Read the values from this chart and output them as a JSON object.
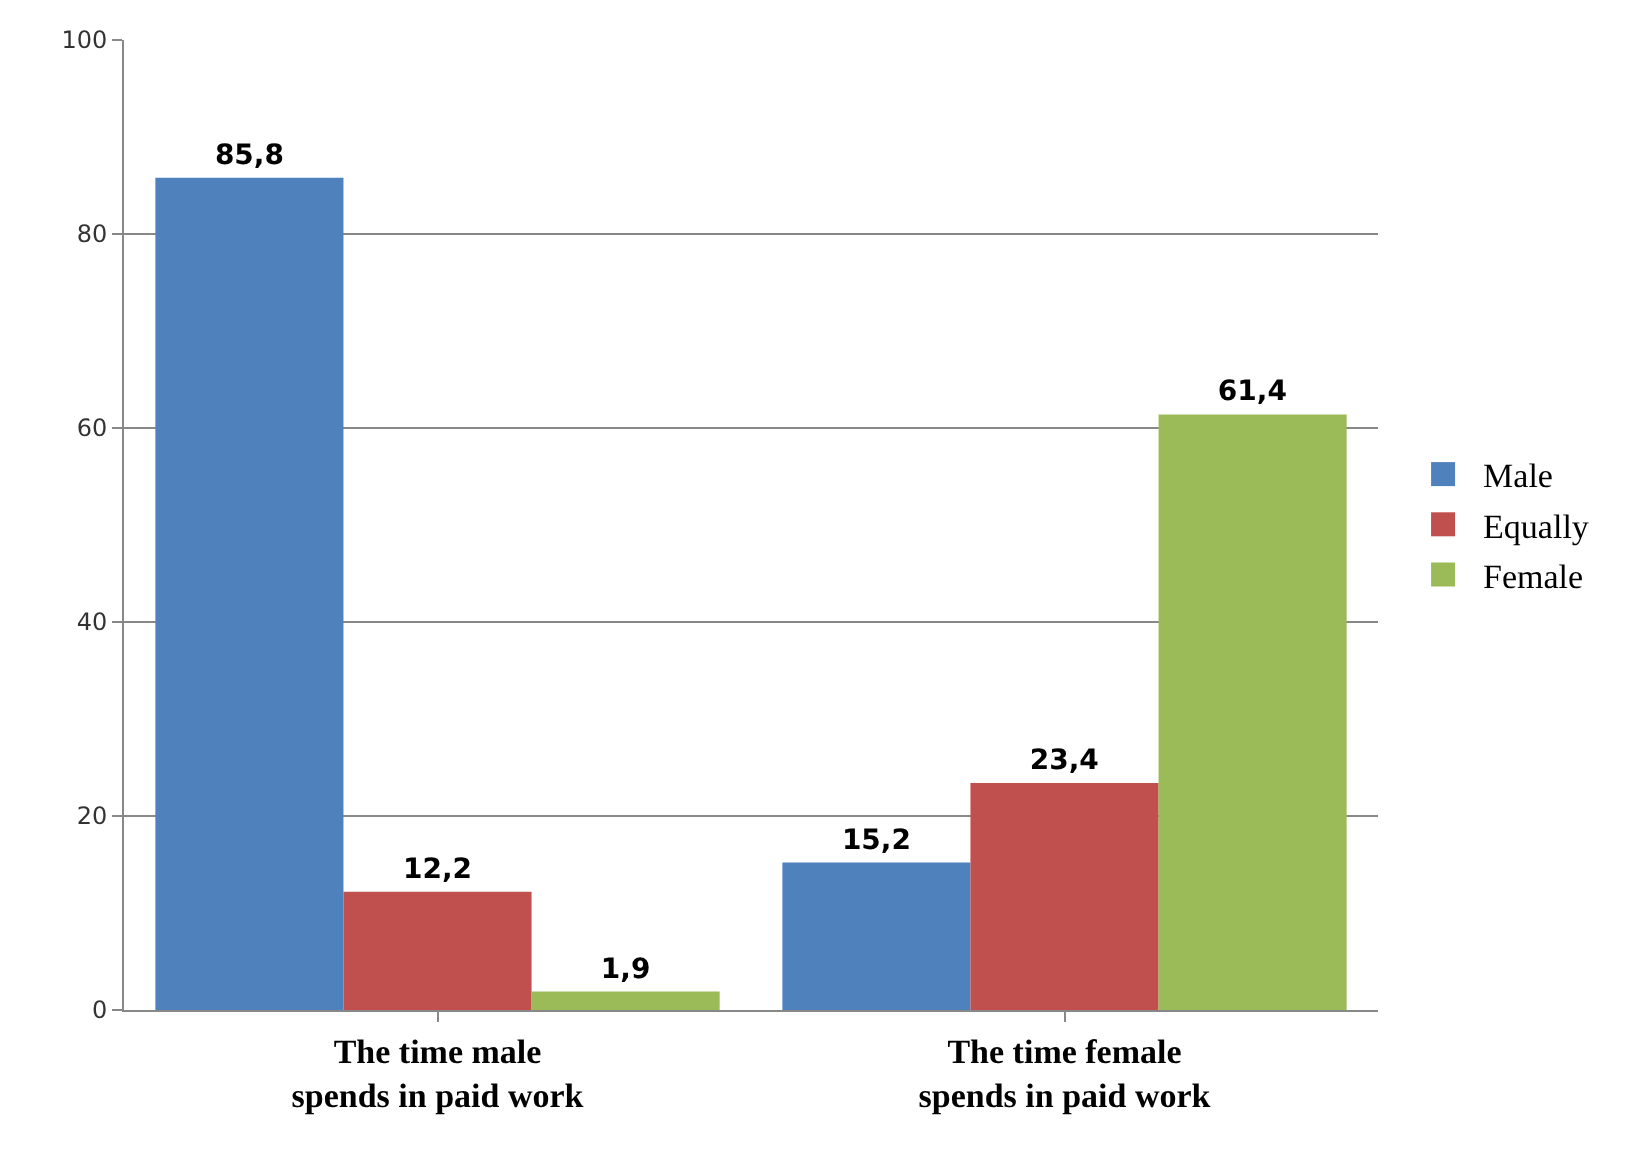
{
  "chart_data": {
    "type": "bar",
    "categories": [
      "The time male\nspends in paid work",
      "The time female\nspends in paid work"
    ],
    "series": [
      {
        "name": "Male",
        "color": "#4f81bd",
        "values": [
          85.8,
          15.2
        ],
        "value_labels": [
          "85,8",
          "15,2"
        ]
      },
      {
        "name": "Equally",
        "color": "#c0504d",
        "values": [
          12.2,
          23.4
        ],
        "value_labels": [
          "12,2",
          "23,4"
        ]
      },
      {
        "name": "Female",
        "color": "#9bbb59",
        "values": [
          1.9,
          61.4
        ],
        "value_labels": [
          "1,9",
          "61,4"
        ]
      }
    ],
    "ylim": [
      0,
      100
    ],
    "yticks": [
      0,
      20,
      40,
      60,
      80,
      100
    ],
    "grid": "y",
    "legend": "right"
  }
}
